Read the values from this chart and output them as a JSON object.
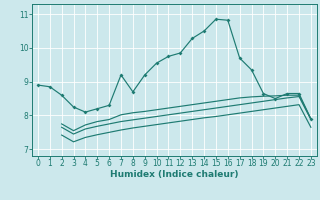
{
  "background_color": "#cce8ec",
  "grid_color": "#b0d8dc",
  "line_color": "#1e7b72",
  "xlabel": "Humidex (Indice chaleur)",
  "xlim": [
    -0.5,
    23.5
  ],
  "ylim": [
    6.8,
    11.3
  ],
  "yticks": [
    7,
    8,
    9,
    10,
    11
  ],
  "xticks": [
    0,
    1,
    2,
    3,
    4,
    5,
    6,
    7,
    8,
    9,
    10,
    11,
    12,
    13,
    14,
    15,
    16,
    17,
    18,
    19,
    20,
    21,
    22,
    23
  ],
  "curve_main_x": [
    0,
    1,
    2,
    3,
    4,
    5,
    6,
    7,
    8,
    9,
    10,
    11,
    12,
    13,
    14,
    15,
    16,
    17,
    18,
    19,
    20,
    21,
    22,
    23
  ],
  "curve_main_y": [
    8.9,
    8.85,
    8.6,
    8.25,
    8.1,
    8.2,
    8.3,
    9.2,
    8.7,
    9.2,
    9.55,
    9.75,
    9.85,
    10.28,
    10.5,
    10.85,
    10.82,
    9.7,
    9.35,
    8.65,
    8.5,
    8.65,
    8.65,
    7.9
  ],
  "curve_top_x": [
    2,
    3,
    4,
    5,
    6,
    7,
    8,
    9,
    10,
    11,
    12,
    13,
    14,
    15,
    16,
    17,
    18,
    19,
    20,
    21,
    22,
    23
  ],
  "curve_top_y": [
    7.75,
    7.55,
    7.72,
    7.82,
    7.88,
    8.02,
    8.08,
    8.12,
    8.17,
    8.22,
    8.27,
    8.32,
    8.37,
    8.42,
    8.47,
    8.52,
    8.55,
    8.57,
    8.58,
    8.6,
    8.6,
    7.9
  ],
  "curve_mid_x": [
    2,
    3,
    4,
    5,
    6,
    7,
    8,
    9,
    10,
    11,
    12,
    13,
    14,
    15,
    16,
    17,
    18,
    19,
    20,
    21,
    22,
    23
  ],
  "curve_mid_y": [
    7.65,
    7.45,
    7.6,
    7.68,
    7.75,
    7.82,
    7.87,
    7.92,
    7.97,
    8.02,
    8.07,
    8.12,
    8.17,
    8.22,
    8.27,
    8.32,
    8.37,
    8.42,
    8.47,
    8.52,
    8.56,
    7.88
  ],
  "curve_bot_x": [
    2,
    3,
    4,
    5,
    6,
    7,
    8,
    9,
    10,
    11,
    12,
    13,
    14,
    15,
    16,
    17,
    18,
    19,
    20,
    21,
    22,
    23
  ],
  "curve_bot_y": [
    7.42,
    7.22,
    7.35,
    7.43,
    7.5,
    7.57,
    7.63,
    7.68,
    7.73,
    7.78,
    7.83,
    7.88,
    7.93,
    7.97,
    8.02,
    8.07,
    8.12,
    8.17,
    8.22,
    8.27,
    8.32,
    7.65
  ]
}
